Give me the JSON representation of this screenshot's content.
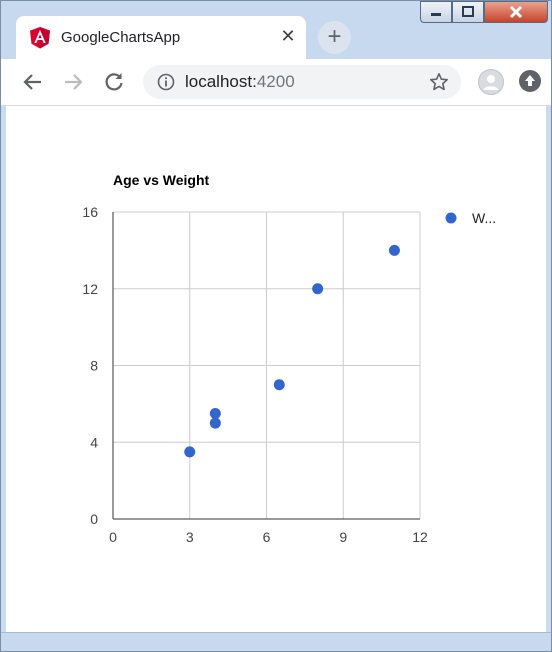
{
  "browser": {
    "tab_title": "GoogleChartsApp",
    "tab_close": "✕",
    "new_tab": "+",
    "url_host": "localhost:",
    "url_port": "4200"
  },
  "colors": {
    "point": "#3366cc",
    "grid": "#cccccc",
    "axis": "#333333"
  },
  "chart_data": {
    "type": "scatter",
    "title": "Age vs Weight",
    "xlim": [
      0,
      12
    ],
    "ylim": [
      0,
      16
    ],
    "xticks": [
      0,
      3,
      6,
      9,
      12
    ],
    "yticks": [
      0,
      4,
      8,
      12,
      16
    ],
    "grid": true,
    "legend_position": "right",
    "series": [
      {
        "name": "W...",
        "x": [
          3,
          4,
          4,
          6.5,
          8,
          11
        ],
        "y": [
          3.5,
          5.5,
          5,
          7,
          12,
          14
        ]
      }
    ]
  }
}
